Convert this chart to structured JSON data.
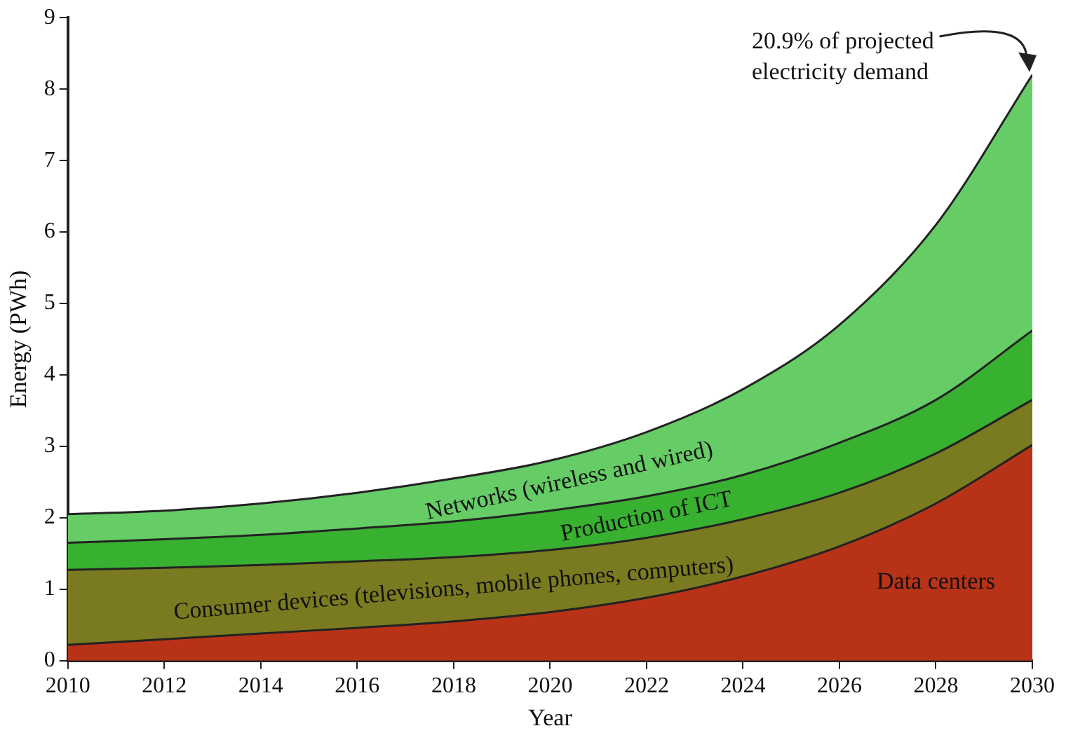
{
  "chart_data": {
    "type": "area",
    "stacked": true,
    "xlabel": "Year",
    "ylabel": "Energy (PWh)",
    "x": [
      2010,
      2012,
      2014,
      2016,
      2018,
      2020,
      2022,
      2024,
      2026,
      2028,
      2030
    ],
    "series": [
      {
        "name": "Data centers",
        "color": "#b83217",
        "values": [
          0.22,
          0.3,
          0.38,
          0.46,
          0.55,
          0.68,
          0.88,
          1.18,
          1.6,
          2.2,
          3.02
        ]
      },
      {
        "name": "Consumer devices (televisions, mobile phones, computers)",
        "color": "#7a7a20",
        "values": [
          1.05,
          1.0,
          0.96,
          0.93,
          0.9,
          0.87,
          0.84,
          0.8,
          0.75,
          0.7,
          0.63
        ]
      },
      {
        "name": "Production of ICT",
        "color": "#38b030",
        "values": [
          0.38,
          0.4,
          0.42,
          0.46,
          0.5,
          0.55,
          0.58,
          0.62,
          0.7,
          0.75,
          0.97
        ]
      },
      {
        "name": "Networks (wireless and wired)",
        "color": "#66cc66",
        "values": [
          0.4,
          0.4,
          0.44,
          0.5,
          0.6,
          0.7,
          0.9,
          1.2,
          1.65,
          2.45,
          3.58
        ]
      }
    ],
    "xlim": [
      2010,
      2030
    ],
    "xticks": [
      2010,
      2012,
      2014,
      2016,
      2018,
      2020,
      2022,
      2024,
      2026,
      2028,
      2030
    ],
    "ylim": [
      0,
      9
    ],
    "yticks": [
      0,
      1,
      2,
      3,
      4,
      5,
      6,
      7,
      8,
      9
    ],
    "grid": false,
    "legend": false,
    "annotations": [
      "20.9% of projected electricity demand"
    ]
  }
}
